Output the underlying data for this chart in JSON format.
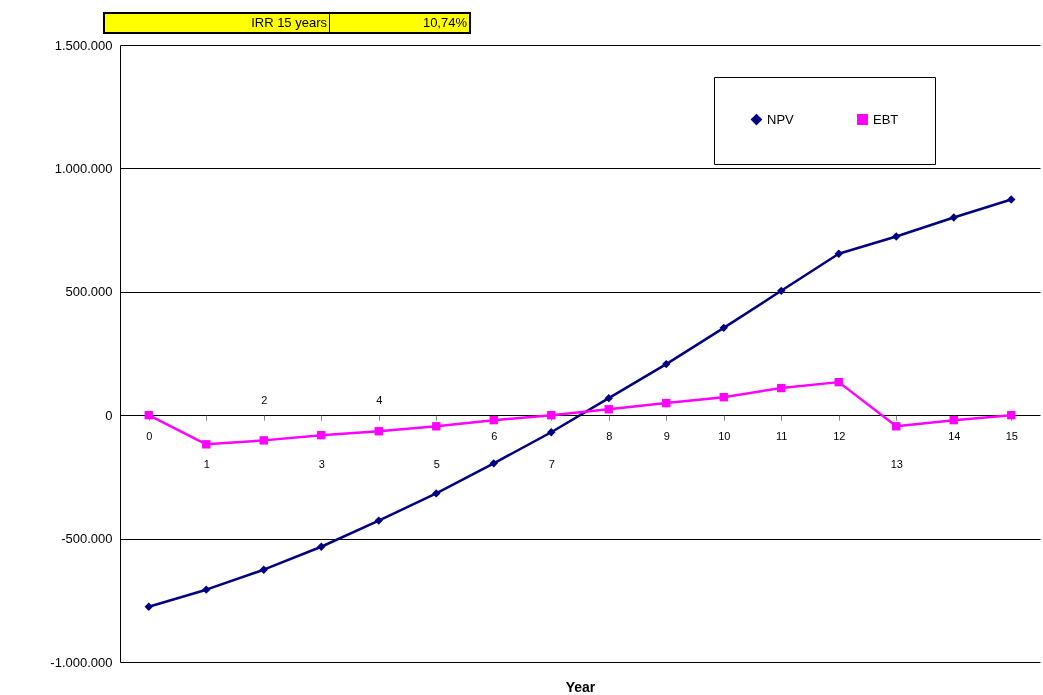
{
  "chart_data": {
    "type": "line",
    "xlabel": "Year",
    "categories": [
      "0",
      "1",
      "2",
      "3",
      "4",
      "5",
      "6",
      "7",
      "8",
      "9",
      "10",
      "11",
      "12",
      "13",
      "14",
      "15"
    ],
    "series": [
      {
        "name": "NPV",
        "color": "#000080",
        "marker": "diamond",
        "values": [
          -776000,
          -707000,
          -626000,
          -533000,
          -427000,
          -317000,
          -195000,
          -69000,
          69000,
          207000,
          354000,
          504000,
          654000,
          724000,
          801000,
          874000
        ]
      },
      {
        "name": "EBT",
        "color": "#ff00ff",
        "marker": "square",
        "values": [
          0,
          -118000,
          -102000,
          -81000,
          -65000,
          -45000,
          -20000,
          0,
          24000,
          49000,
          73000,
          110000,
          134000,
          -45000,
          -20000,
          0
        ]
      }
    ],
    "ylim": [
      -1000000,
      1500000
    ],
    "yticks": [
      {
        "value": -1000000,
        "label": "-1.000.000"
      },
      {
        "value": -500000,
        "label": "-500.000"
      },
      {
        "value": 0,
        "label": "0"
      },
      {
        "value": 500000,
        "label": "500.000"
      },
      {
        "value": 1000000,
        "label": "1.000.000"
      },
      {
        "value": 1500000,
        "label": "1.500.000"
      }
    ],
    "grid": "y",
    "legend": "top right",
    "line_style": "solid",
    "annotations": [
      "IRR 15 years",
      "10,74%"
    ]
  }
}
